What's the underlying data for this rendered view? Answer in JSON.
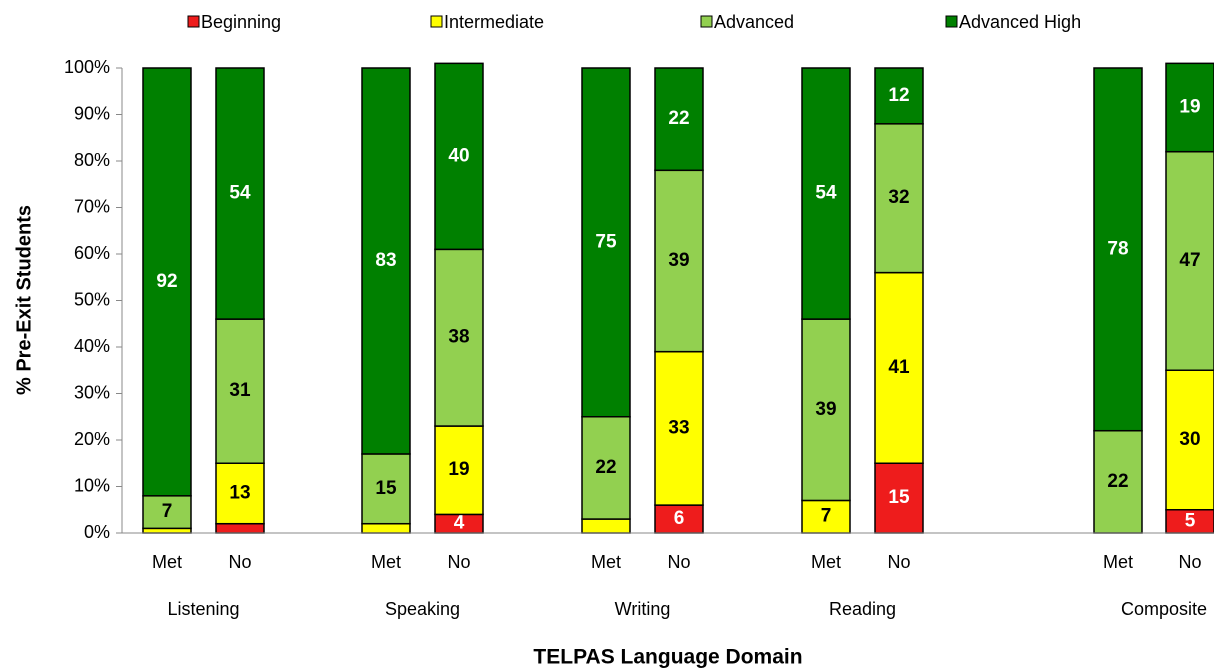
{
  "chart_data": {
    "type": "stacked_bar",
    "y_label": "% Pre-Exit Students",
    "x_label": "TELPAS Language Domain",
    "categories": [
      "Met",
      "No",
      "Met",
      "No",
      "Met",
      "No",
      "Met",
      "No",
      "Met",
      "No"
    ],
    "groups": [
      "Listening",
      "Speaking",
      "Writing",
      "Reading",
      "Composite"
    ],
    "series": [
      {
        "name": "Beginning",
        "color": "#ee1c1c",
        "values": [
          0,
          2,
          0,
          4,
          0,
          6,
          0,
          15,
          0,
          5
        ]
      },
      {
        "name": "Intermediate",
        "color": "#ffff00",
        "values": [
          1,
          13,
          2,
          19,
          3,
          33,
          7,
          41,
          0,
          30
        ]
      },
      {
        "name": "Advanced",
        "color": "#92d050",
        "values": [
          7,
          31,
          15,
          38,
          22,
          39,
          39,
          32,
          22,
          47
        ]
      },
      {
        "name": "Advanced High",
        "color": "#008000",
        "values": [
          92,
          54,
          83,
          40,
          75,
          22,
          54,
          12,
          78,
          19
        ]
      }
    ],
    "ylim": [
      0,
      100
    ],
    "yticks": [
      {
        "value": 0,
        "label": "0%"
      },
      {
        "value": 10,
        "label": "10%"
      },
      {
        "value": 20,
        "label": "20%"
      },
      {
        "value": 30,
        "label": "30%"
      },
      {
        "value": 40,
        "label": "40%"
      },
      {
        "value": 50,
        "label": "50%"
      },
      {
        "value": 60,
        "label": "60%"
      },
      {
        "value": 70,
        "label": "70%"
      },
      {
        "value": 80,
        "label": "80%"
      },
      {
        "value": 90,
        "label": "90%"
      },
      {
        "value": 100,
        "label": "100%"
      }
    ],
    "legend": "top"
  }
}
